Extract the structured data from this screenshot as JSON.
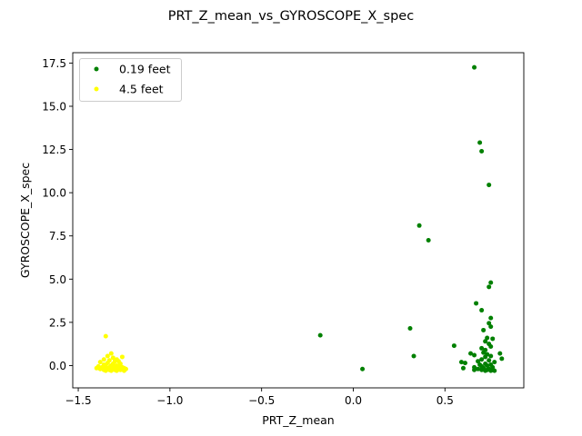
{
  "chart_data": {
    "type": "scatter",
    "title": "PRT_Z_mean_vs_GYROSCOPE_X_spec",
    "xlabel": "PRT_Z_mean",
    "ylabel": "GYROSCOPE_X_spec",
    "xlim": [
      -1.53,
      0.93
    ],
    "ylim": [
      -1.29,
      18.1
    ],
    "xticks": [
      -1.5,
      -1.0,
      -0.5,
      0.0,
      0.5
    ],
    "xtick_labels": [
      "−1.5",
      "−1.0",
      "−0.5",
      "0.0",
      "0.5"
    ],
    "yticks": [
      0.0,
      2.5,
      5.0,
      7.5,
      10.0,
      12.5,
      15.0,
      17.5
    ],
    "ytick_labels": [
      "0.0",
      "2.5",
      "5.0",
      "7.5",
      "10.0",
      "12.5",
      "15.0",
      "17.5"
    ],
    "grid": false,
    "legend_position": "top-left",
    "series": [
      {
        "name": "0.19 feet",
        "color": "#008000",
        "points": [
          [
            0.66,
            17.25
          ],
          [
            0.69,
            12.9
          ],
          [
            0.7,
            12.4
          ],
          [
            0.74,
            10.45
          ],
          [
            0.36,
            8.1
          ],
          [
            0.41,
            7.25
          ],
          [
            0.75,
            4.8
          ],
          [
            0.74,
            4.55
          ],
          [
            0.67,
            3.6
          ],
          [
            0.7,
            3.2
          ],
          [
            0.75,
            2.75
          ],
          [
            0.74,
            2.45
          ],
          [
            0.75,
            2.25
          ],
          [
            0.31,
            2.15
          ],
          [
            0.71,
            2.05
          ],
          [
            -0.18,
            1.75
          ],
          [
            0.73,
            1.6
          ],
          [
            0.76,
            1.55
          ],
          [
            0.72,
            1.4
          ],
          [
            0.74,
            1.25
          ],
          [
            0.55,
            1.15
          ],
          [
            0.75,
            1.1
          ],
          [
            0.7,
            1.0
          ],
          [
            0.72,
            0.9
          ],
          [
            0.71,
            0.75
          ],
          [
            0.64,
            0.7
          ],
          [
            0.8,
            0.7
          ],
          [
            0.73,
            0.65
          ],
          [
            0.66,
            0.6
          ],
          [
            0.33,
            0.55
          ],
          [
            0.75,
            0.55
          ],
          [
            0.72,
            0.5
          ],
          [
            0.81,
            0.4
          ],
          [
            0.7,
            0.35
          ],
          [
            0.74,
            0.3
          ],
          [
            0.68,
            0.25
          ],
          [
            0.77,
            0.2
          ],
          [
            0.59,
            0.2
          ],
          [
            0.61,
            0.15
          ],
          [
            0.72,
            0.1
          ],
          [
            0.69,
            0.05
          ],
          [
            0.75,
            0.05
          ],
          [
            0.73,
            0.0
          ],
          [
            0.7,
            -0.05
          ],
          [
            0.66,
            -0.1
          ],
          [
            0.76,
            -0.1
          ],
          [
            0.71,
            -0.15
          ],
          [
            0.6,
            -0.15
          ],
          [
            0.74,
            -0.2
          ],
          [
            0.05,
            -0.2
          ],
          [
            0.68,
            -0.2
          ],
          [
            0.73,
            -0.25
          ],
          [
            0.76,
            -0.25
          ],
          [
            0.7,
            -0.25
          ],
          [
            0.66,
            -0.25
          ],
          [
            0.72,
            -0.3
          ],
          [
            0.77,
            -0.3
          ],
          [
            0.75,
            -0.3
          ]
        ]
      },
      {
        "name": "4.5 feet",
        "color": "#ffff00",
        "points": [
          [
            -1.35,
            1.7
          ],
          [
            -1.32,
            0.7
          ],
          [
            -1.34,
            0.55
          ],
          [
            -1.26,
            0.5
          ],
          [
            -1.31,
            0.45
          ],
          [
            -1.36,
            0.35
          ],
          [
            -1.29,
            0.35
          ],
          [
            -1.33,
            0.3
          ],
          [
            -1.3,
            0.25
          ],
          [
            -1.28,
            0.25
          ],
          [
            -1.38,
            0.2
          ],
          [
            -1.34,
            0.15
          ],
          [
            -1.31,
            0.1
          ],
          [
            -1.27,
            0.1
          ],
          [
            -1.36,
            0.05
          ],
          [
            -1.32,
            0.0
          ],
          [
            -1.29,
            0.0
          ],
          [
            -1.39,
            -0.05
          ],
          [
            -1.35,
            -0.05
          ],
          [
            -1.31,
            -0.05
          ],
          [
            -1.27,
            -0.05
          ],
          [
            -1.37,
            -0.1
          ],
          [
            -1.33,
            -0.1
          ],
          [
            -1.3,
            -0.1
          ],
          [
            -1.26,
            -0.1
          ],
          [
            -1.4,
            -0.15
          ],
          [
            -1.35,
            -0.15
          ],
          [
            -1.32,
            -0.15
          ],
          [
            -1.29,
            -0.15
          ],
          [
            -1.25,
            -0.15
          ],
          [
            -1.38,
            -0.2
          ],
          [
            -1.34,
            -0.2
          ],
          [
            -1.31,
            -0.2
          ],
          [
            -1.28,
            -0.2
          ],
          [
            -1.24,
            -0.2
          ],
          [
            -1.36,
            -0.25
          ],
          [
            -1.33,
            -0.25
          ],
          [
            -1.3,
            -0.25
          ],
          [
            -1.27,
            -0.25
          ],
          [
            -1.35,
            -0.3
          ],
          [
            -1.32,
            -0.3
          ],
          [
            -1.29,
            -0.3
          ],
          [
            -1.25,
            -0.3
          ]
        ]
      }
    ]
  }
}
